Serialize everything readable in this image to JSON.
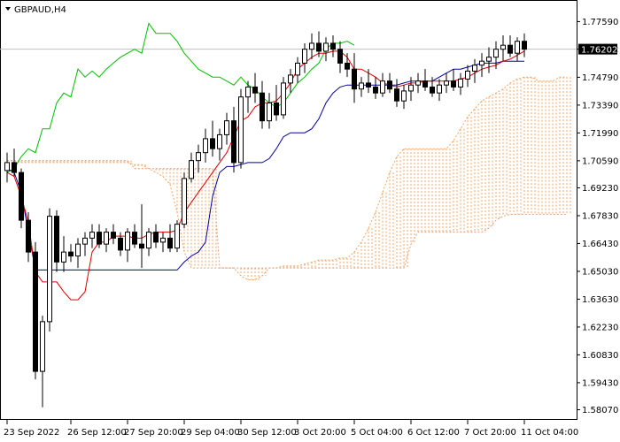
{
  "chart_title": "GBPAUD,H4",
  "price_label": "1.76202",
  "colors": {
    "background": "#ffffff",
    "frame": "#000000",
    "tenkan": "#e00000",
    "kijun": "#0000a0",
    "chikou": "#00c000",
    "senkou_a": "#f4a460",
    "senkou_b": "#d8a080",
    "cloud_hatch": "#f4a460",
    "price_line": "#c0c0c0",
    "candle": "#000000"
  },
  "chart_data": {
    "type": "candlestick",
    "title": "GBPAUD,H4",
    "ylim": [
      1.5787,
      1.7832
    ],
    "y_ticks": [
      "1.77590",
      "1.76202",
      "1.74790",
      "1.73390",
      "1.71990",
      "1.70590",
      "1.69230",
      "1.67830",
      "1.66430",
      "1.65030",
      "1.63630",
      "1.62230",
      "1.60830",
      "1.59430",
      "1.58070"
    ],
    "x_ticks": [
      {
        "label": "23 Sep 2022",
        "index": 0
      },
      {
        "label": "26 Sep 12:00",
        "index": 9
      },
      {
        "label": "27 Sep 20:00",
        "index": 17
      },
      {
        "label": "29 Sep 04:00",
        "index": 25
      },
      {
        "label": "30 Sep 12:00",
        "index": 33
      },
      {
        "label": "3 Oct 20:00",
        "index": 41
      },
      {
        "label": "5 Oct 04:00",
        "index": 49
      },
      {
        "label": "6 Oct 12:00",
        "index": 57
      },
      {
        "label": "7 Oct 20:00",
        "index": 65
      },
      {
        "label": "11 Oct 04:00",
        "index": 73
      }
    ],
    "x_count": 80,
    "x_step": 8.0,
    "candles": [
      [
        1.701,
        1.71,
        1.695,
        1.705
      ],
      [
        1.705,
        1.712,
        1.698,
        1.7
      ],
      [
        1.7,
        1.702,
        1.672,
        1.676
      ],
      [
        1.676,
        1.68,
        1.655,
        1.66
      ],
      [
        1.66,
        1.665,
        1.596,
        1.6
      ],
      [
        1.6,
        1.628,
        1.582,
        1.625
      ],
      [
        1.625,
        1.682,
        1.62,
        1.678
      ],
      [
        1.678,
        1.681,
        1.65,
        1.655
      ],
      [
        1.655,
        1.668,
        1.65,
        1.66
      ],
      [
        1.66,
        1.664,
        1.655,
        1.658
      ],
      [
        1.658,
        1.667,
        1.652,
        1.664
      ],
      [
        1.664,
        1.67,
        1.658,
        1.667
      ],
      [
        1.667,
        1.674,
        1.662,
        1.67
      ],
      [
        1.67,
        1.674,
        1.662,
        1.664
      ],
      [
        1.664,
        1.672,
        1.66,
        1.67
      ],
      [
        1.67,
        1.674,
        1.664,
        1.667
      ],
      [
        1.667,
        1.67,
        1.658,
        1.661
      ],
      [
        1.661,
        1.672,
        1.655,
        1.67
      ],
      [
        1.67,
        1.674,
        1.662,
        1.664
      ],
      [
        1.664,
        1.684,
        1.652,
        1.662
      ],
      [
        1.662,
        1.672,
        1.658,
        1.67
      ],
      [
        1.67,
        1.674,
        1.662,
        1.665
      ],
      [
        1.665,
        1.67,
        1.66,
        1.667
      ],
      [
        1.667,
        1.674,
        1.66,
        1.662
      ],
      [
        1.662,
        1.676,
        1.66,
        1.674
      ],
      [
        1.674,
        1.7,
        1.672,
        1.697
      ],
      [
        1.697,
        1.71,
        1.695,
        1.706
      ],
      [
        1.706,
        1.714,
        1.7,
        1.71
      ],
      [
        1.71,
        1.722,
        1.705,
        1.717
      ],
      [
        1.717,
        1.726,
        1.708,
        1.712
      ],
      [
        1.712,
        1.722,
        1.706,
        1.719
      ],
      [
        1.719,
        1.73,
        1.714,
        1.726
      ],
      [
        1.726,
        1.733,
        1.7,
        1.705
      ],
      [
        1.705,
        1.742,
        1.702,
        1.738
      ],
      [
        1.738,
        1.746,
        1.73,
        1.743
      ],
      [
        1.743,
        1.75,
        1.735,
        1.74
      ],
      [
        1.74,
        1.746,
        1.722,
        1.726
      ],
      [
        1.726,
        1.74,
        1.722,
        1.735
      ],
      [
        1.735,
        1.744,
        1.726,
        1.729
      ],
      [
        1.729,
        1.748,
        1.727,
        1.745
      ],
      [
        1.745,
        1.752,
        1.74,
        1.749
      ],
      [
        1.749,
        1.758,
        1.745,
        1.755
      ],
      [
        1.755,
        1.765,
        1.75,
        1.762
      ],
      [
        1.762,
        1.77,
        1.757,
        1.765
      ],
      [
        1.765,
        1.771,
        1.758,
        1.761
      ],
      [
        1.761,
        1.768,
        1.756,
        1.765
      ],
      [
        1.765,
        1.769,
        1.758,
        1.762
      ],
      [
        1.762,
        1.766,
        1.75,
        1.755
      ],
      [
        1.755,
        1.76,
        1.748,
        1.752
      ],
      [
        1.752,
        1.76,
        1.735,
        1.742
      ],
      [
        1.742,
        1.748,
        1.738,
        1.745
      ],
      [
        1.745,
        1.752,
        1.74,
        1.743
      ],
      [
        1.743,
        1.748,
        1.737,
        1.74
      ],
      [
        1.74,
        1.75,
        1.738,
        1.746
      ],
      [
        1.746,
        1.75,
        1.74,
        1.742
      ],
      [
        1.742,
        1.747,
        1.733,
        1.736
      ],
      [
        1.736,
        1.744,
        1.732,
        1.741
      ],
      [
        1.741,
        1.748,
        1.736,
        1.744
      ],
      [
        1.744,
        1.75,
        1.74,
        1.746
      ],
      [
        1.746,
        1.752,
        1.741,
        1.743
      ],
      [
        1.743,
        1.748,
        1.738,
        1.74
      ],
      [
        1.74,
        1.747,
        1.736,
        1.744
      ],
      [
        1.744,
        1.75,
        1.74,
        1.746
      ],
      [
        1.746,
        1.752,
        1.741,
        1.743
      ],
      [
        1.743,
        1.75,
        1.739,
        1.747
      ],
      [
        1.747,
        1.754,
        1.743,
        1.751
      ],
      [
        1.751,
        1.757,
        1.745,
        1.754
      ],
      [
        1.754,
        1.76,
        1.748,
        1.756
      ],
      [
        1.756,
        1.763,
        1.75,
        1.758
      ],
      [
        1.758,
        1.766,
        1.752,
        1.762
      ],
      [
        1.762,
        1.769,
        1.756,
        1.764
      ],
      [
        1.764,
        1.769,
        1.758,
        1.76
      ],
      [
        1.76,
        1.768,
        1.756,
        1.766
      ],
      [
        1.766,
        1.77,
        1.758,
        1.762
      ]
    ],
    "tenkan": [
      1.7,
      1.698,
      1.688,
      1.675,
      1.65,
      1.645,
      1.645,
      1.645,
      1.64,
      1.636,
      1.636,
      1.64,
      1.66,
      1.665,
      1.665,
      1.668,
      1.668,
      1.668,
      1.667,
      1.667,
      1.669,
      1.67,
      1.67,
      1.67,
      1.671,
      1.68,
      1.685,
      1.69,
      1.695,
      1.7,
      1.705,
      1.71,
      1.718,
      1.726,
      1.728,
      1.733,
      1.735,
      1.735,
      1.736,
      1.74,
      1.745,
      1.752,
      1.755,
      1.758,
      1.76,
      1.76,
      1.761,
      1.761,
      1.758,
      1.752,
      1.752,
      1.75,
      1.748,
      1.745,
      1.744,
      1.743,
      1.744,
      1.745,
      1.745,
      1.746,
      1.746,
      1.746,
      1.746,
      1.746,
      1.747,
      1.748,
      1.75,
      1.752,
      1.753,
      1.754,
      1.756,
      1.757,
      1.759,
      1.761
    ],
    "kijun": [
      1.702,
      1.7,
      1.69,
      1.67,
      1.651,
      1.651,
      1.651,
      1.651,
      1.651,
      1.651,
      1.651,
      1.651,
      1.651,
      1.651,
      1.651,
      1.651,
      1.651,
      1.651,
      1.651,
      1.651,
      1.651,
      1.651,
      1.651,
      1.651,
      1.651,
      1.655,
      1.658,
      1.66,
      1.665,
      1.688,
      1.7,
      1.703,
      1.703,
      1.704,
      1.705,
      1.705,
      1.705,
      1.707,
      1.712,
      1.718,
      1.72,
      1.72,
      1.72,
      1.722,
      1.727,
      1.735,
      1.74,
      1.743,
      1.744,
      1.744,
      1.744,
      1.744,
      1.744,
      1.744,
      1.744,
      1.744,
      1.745,
      1.746,
      1.746,
      1.746,
      1.746,
      1.748,
      1.75,
      1.752,
      1.752,
      1.753,
      1.754,
      1.755,
      1.755,
      1.755,
      1.756,
      1.756,
      1.756,
      1.756
    ],
    "chikou": [
      1.7,
      1.702,
      1.708,
      1.712,
      1.71,
      1.722,
      1.722,
      1.735,
      1.74,
      1.738,
      1.752,
      1.748,
      1.751,
      1.748,
      1.752,
      1.755,
      1.758,
      1.76,
      1.762,
      1.76,
      1.775,
      1.77,
      1.77,
      1.77,
      1.766,
      1.76,
      1.756,
      1.752,
      1.75,
      1.748,
      1.748,
      1.746,
      1.744,
      1.748,
      1.744,
      1.742,
      1.738,
      1.735,
      1.733,
      1.735,
      1.74,
      1.745,
      1.748,
      1.752,
      1.755,
      1.762,
      1.765,
      1.765,
      1.766,
      1.764
    ],
    "senkou_a": [
      1.706,
      1.706,
      1.705,
      1.705,
      1.705,
      1.705,
      1.705,
      1.705,
      1.705,
      1.705,
      1.705,
      1.705,
      1.705,
      1.705,
      1.705,
      1.705,
      1.705,
      1.705,
      1.704,
      1.704,
      1.702,
      1.7,
      1.698,
      1.694,
      1.68,
      1.66,
      1.652,
      1.652,
      1.652,
      1.652,
      1.652,
      1.652,
      1.652,
      1.648,
      1.646,
      1.646,
      1.648,
      1.652,
      1.652,
      1.653,
      1.653,
      1.653,
      1.654,
      1.655,
      1.656,
      1.656,
      1.656,
      1.657,
      1.657,
      1.66,
      1.665,
      1.672,
      1.68,
      1.69,
      1.7,
      1.708,
      1.712,
      1.712,
      1.712,
      1.712,
      1.712,
      1.712,
      1.712,
      1.716,
      1.722,
      1.728,
      1.732,
      1.736,
      1.738,
      1.74,
      1.742,
      1.745,
      1.747,
      1.748,
      1.748,
      1.746,
      1.746,
      1.746,
      1.748,
      1.748
    ],
    "senkou_b": [
      1.706,
      1.706,
      1.706,
      1.706,
      1.706,
      1.706,
      1.706,
      1.706,
      1.706,
      1.706,
      1.706,
      1.706,
      1.706,
      1.706,
      1.706,
      1.706,
      1.706,
      1.706,
      1.702,
      1.702,
      1.702,
      1.702,
      1.702,
      1.702,
      1.702,
      1.702,
      1.702,
      1.702,
      1.702,
      1.702,
      1.652,
      1.652,
      1.652,
      1.652,
      1.652,
      1.652,
      1.652,
      1.652,
      1.652,
      1.652,
      1.652,
      1.652,
      1.652,
      1.652,
      1.652,
      1.652,
      1.652,
      1.652,
      1.652,
      1.652,
      1.652,
      1.652,
      1.652,
      1.652,
      1.652,
      1.652,
      1.652,
      1.664,
      1.67,
      1.67,
      1.67,
      1.67,
      1.67,
      1.67,
      1.67,
      1.67,
      1.67,
      1.67,
      1.672,
      1.676,
      1.678,
      1.679,
      1.679,
      1.679,
      1.679,
      1.679,
      1.679,
      1.679,
      1.679,
      1.679
    ],
    "current_price": 1.76202
  }
}
